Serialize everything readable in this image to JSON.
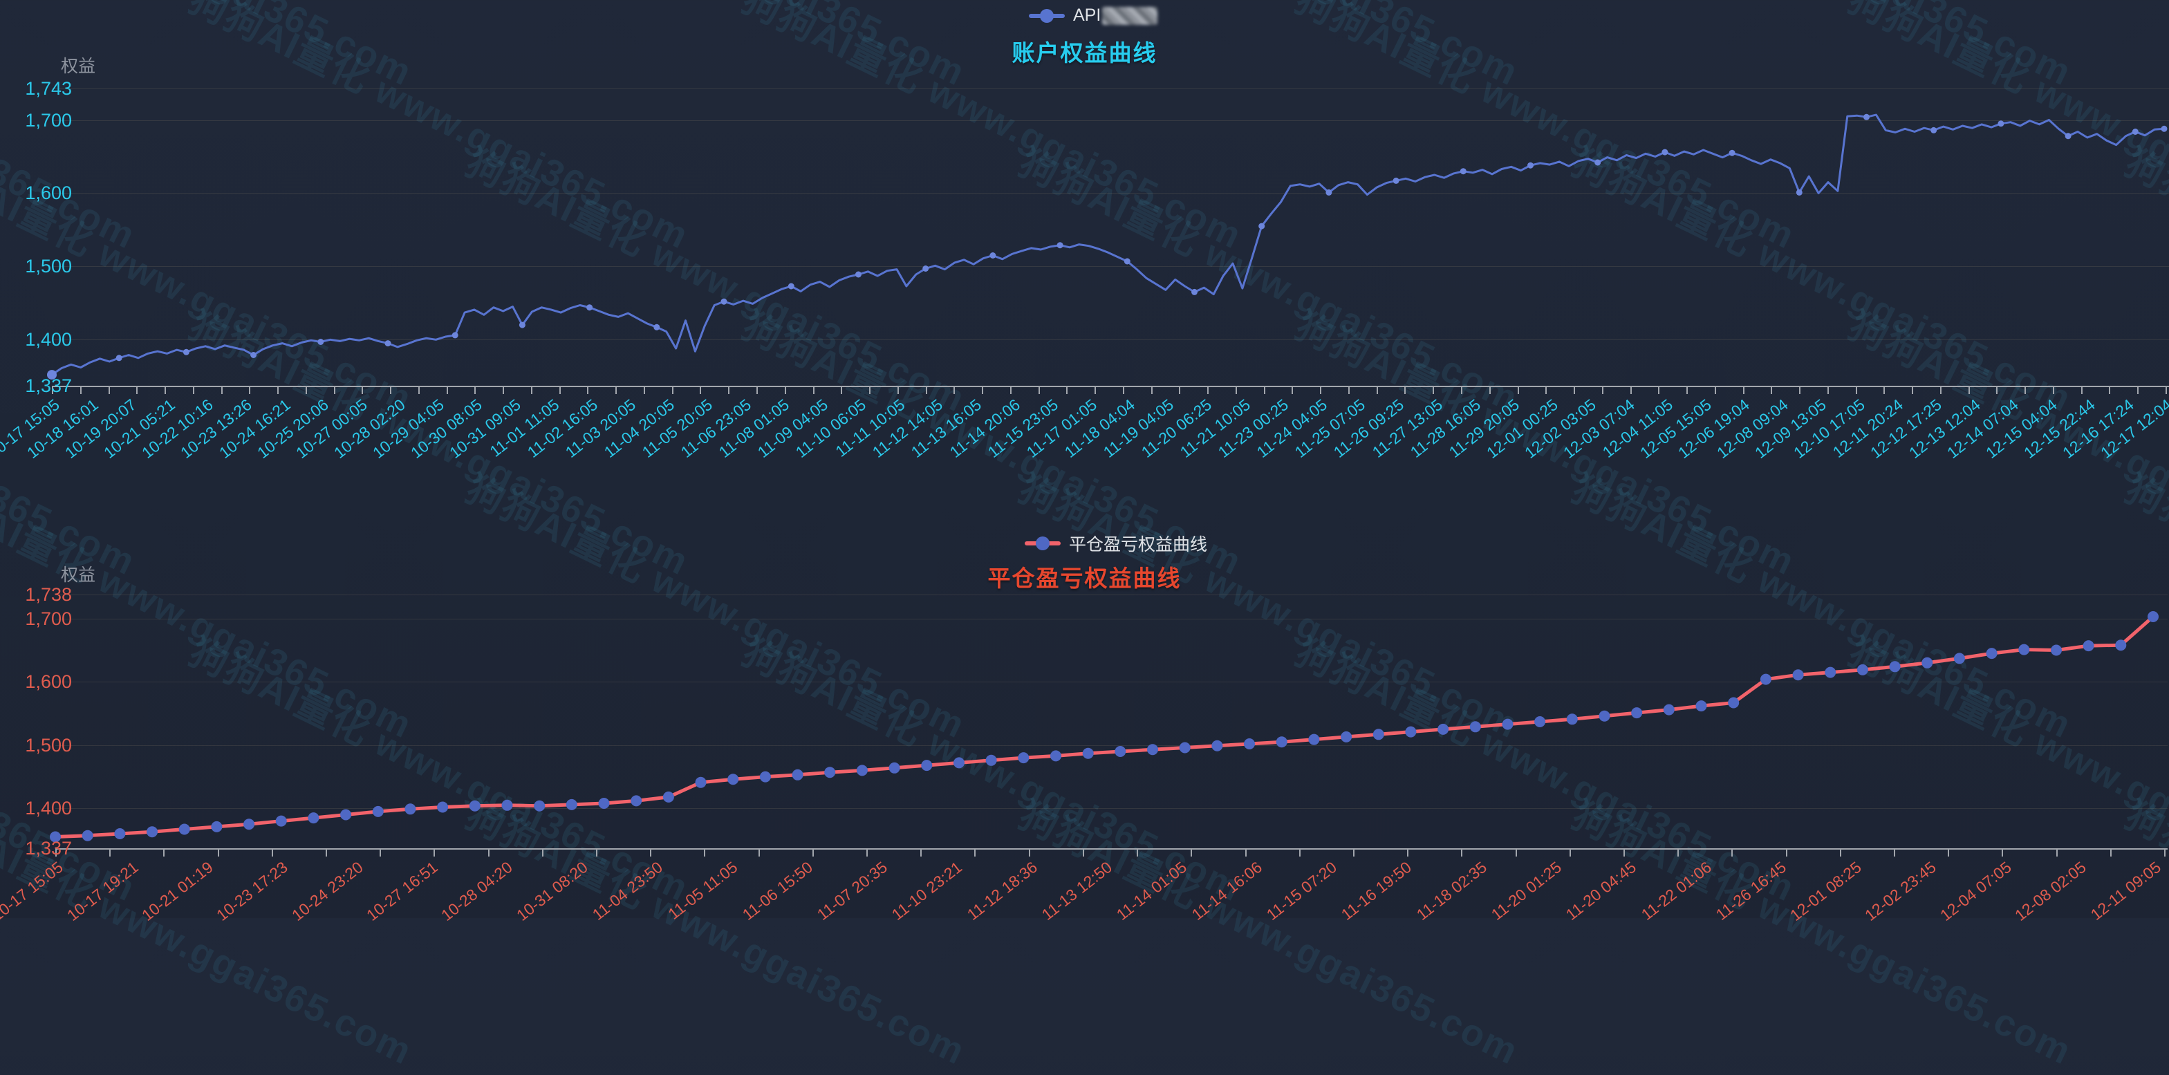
{
  "watermark": {
    "text": "狗狗AI量化 www.ggai365.com"
  },
  "chart_data": [
    {
      "type": "line",
      "title": "账户权益曲线",
      "title_color": "#27cdef",
      "legend": {
        "label": "API",
        "label_masked_suffix": true,
        "line_color": "#5874d0",
        "dot_color": "#5874d0"
      },
      "y_axis": {
        "name": "权益",
        "tick_labels": [
          "1,743",
          "1,700",
          "1,600",
          "1,500",
          "1,400",
          "1,337"
        ],
        "tick_values": [
          1743,
          1700,
          1600,
          1500,
          1400,
          1337
        ],
        "min": 1337,
        "max": 1743,
        "label_color": "#2bc9ea"
      },
      "x_axis": {
        "label_color": "#2bc9ea",
        "labels": [
          "10-17 15:05",
          "10-18 16:01",
          "10-19 20:07",
          "10-21 05:21",
          "10-22 10:16",
          "10-23 13:26",
          "10-24 16:21",
          "10-25 20:06",
          "10-27 00:05",
          "10-28 02:20",
          "10-29 04:05",
          "10-30 08:05",
          "10-31 09:05",
          "11-01 11:05",
          "11-02 16:05",
          "11-03 20:05",
          "11-04 20:05",
          "11-05 20:05",
          "11-06 23:05",
          "11-08 01:05",
          "11-09 04:05",
          "11-10 06:05",
          "11-11 10:05",
          "11-12 14:05",
          "11-13 16:05",
          "11-14 20:06",
          "11-15 23:05",
          "11-17 01:05",
          "11-18 04:04",
          "11-19 04:05",
          "11-20 06:25",
          "11-21 10:05",
          "11-23 00:25",
          "11-24 04:05",
          "11-25 07:05",
          "11-26 09:25",
          "11-27 13:05",
          "11-28 16:05",
          "11-29 20:05",
          "12-01 00:25",
          "12-02 03:05",
          "12-03 07:04",
          "12-04 11:05",
          "12-05 15:05",
          "12-06 19:04",
          "12-08 09:04",
          "12-09 13:05",
          "12-10 17:05",
          "12-11 20:24",
          "12-12 17:25",
          "12-13 12:04",
          "12-14 07:04",
          "12-15 04:04",
          "12-15 22:44",
          "12-16 17:24",
          "12-17 12:04"
        ]
      },
      "series": {
        "name": "API",
        "color": "#5874d0",
        "marker_color": "#6d86dc",
        "values": [
          1352,
          1361,
          1366,
          1362,
          1369,
          1374,
          1370,
          1375,
          1379,
          1375,
          1381,
          1384,
          1381,
          1386,
          1383,
          1388,
          1391,
          1387,
          1392,
          1389,
          1386,
          1379,
          1387,
          1392,
          1395,
          1391,
          1396,
          1399,
          1397,
          1400,
          1398,
          1401,
          1399,
          1402,
          1398,
          1395,
          1390,
          1394,
          1399,
          1402,
          1400,
          1404,
          1406,
          1437,
          1441,
          1434,
          1444,
          1439,
          1445,
          1420,
          1438,
          1444,
          1441,
          1437,
          1443,
          1447,
          1444,
          1439,
          1434,
          1431,
          1436,
          1429,
          1422,
          1417,
          1411,
          1388,
          1426,
          1384,
          1419,
          1447,
          1452,
          1448,
          1453,
          1449,
          1457,
          1463,
          1469,
          1473,
          1466,
          1475,
          1479,
          1472,
          1481,
          1486,
          1489,
          1493,
          1487,
          1494,
          1496,
          1473,
          1489,
          1497,
          1501,
          1496,
          1505,
          1509,
          1503,
          1511,
          1515,
          1510,
          1517,
          1521,
          1525,
          1523,
          1527,
          1529,
          1526,
          1530,
          1528,
          1524,
          1519,
          1513,
          1507,
          1496,
          1484,
          1476,
          1468,
          1482,
          1473,
          1465,
          1471,
          1462,
          1487,
          1504,
          1470,
          1512,
          1555,
          1572,
          1588,
          1610,
          1612,
          1609,
          1613,
          1601,
          1611,
          1615,
          1612,
          1598,
          1608,
          1614,
          1617,
          1620,
          1616,
          1622,
          1625,
          1621,
          1627,
          1630,
          1628,
          1632,
          1626,
          1633,
          1636,
          1631,
          1638,
          1641,
          1639,
          1643,
          1637,
          1644,
          1647,
          1642,
          1649,
          1645,
          1652,
          1648,
          1654,
          1650,
          1656,
          1651,
          1657,
          1653,
          1659,
          1654,
          1649,
          1655,
          1651,
          1645,
          1640,
          1646,
          1641,
          1634,
          1601,
          1623,
          1600,
          1615,
          1603,
          1705,
          1706,
          1704,
          1707,
          1686,
          1683,
          1688,
          1684,
          1689,
          1686,
          1691,
          1687,
          1692,
          1689,
          1694,
          1690,
          1695,
          1697,
          1692,
          1699,
          1694,
          1700,
          1688,
          1678,
          1684,
          1676,
          1681,
          1672,
          1666,
          1678,
          1684,
          1679,
          1687,
          1688
        ]
      }
    },
    {
      "type": "line",
      "title": "平仓盈亏权益曲线",
      "title_color": "#e7472e",
      "legend": {
        "label": "平仓盈亏权益曲线",
        "line_color": "#f2636b",
        "dot_color": "#4f68c4"
      },
      "y_axis": {
        "name": "权益",
        "tick_labels": [
          "1,738",
          "1,700",
          "1,600",
          "1,500",
          "1,400",
          "1,337"
        ],
        "tick_values": [
          1738,
          1700,
          1600,
          1500,
          1400,
          1337
        ],
        "min": 1337,
        "max": 1738,
        "label_color": "#e05c4e"
      },
      "x_axis": {
        "label_color": "#e05c4e",
        "labels": [
          "10-17 15:05",
          "10-17 19:21",
          "10-21 01:19",
          "10-23 17:23",
          "10-24 23:20",
          "10-27 16:51",
          "10-28 04:20",
          "10-31 08:20",
          "11-04 23:50",
          "11-05 11:05",
          "11-06 15:50",
          "11-07 20:35",
          "11-10 23:21",
          "11-12 18:36",
          "11-13 12:50",
          "11-14 01:05",
          "11-14 16:06",
          "11-15 07:20",
          "11-16 19:50",
          "11-18 02:35",
          "11-20 01:25",
          "11-20 04:45",
          "11-22 01:06",
          "11-26 16:45",
          "12-01 08:25",
          "12-02 23:45",
          "12-04 07:05",
          "12-08 02:05",
          "12-11 09:05"
        ]
      },
      "series": {
        "name": "平仓盈亏权益曲线",
        "color": "#f2636b",
        "marker_color": "#4f68c4",
        "values": [
          1355,
          1357,
          1360,
          1363,
          1367,
          1371,
          1375,
          1380,
          1385,
          1390,
          1395,
          1399,
          1402,
          1404,
          1405,
          1404,
          1406,
          1408,
          1412,
          1418,
          1441,
          1446,
          1450,
          1453,
          1457,
          1460,
          1464,
          1468,
          1472,
          1476,
          1480,
          1483,
          1487,
          1490,
          1493,
          1496,
          1499,
          1502,
          1505,
          1509,
          1513,
          1517,
          1521,
          1525,
          1529,
          1533,
          1537,
          1541,
          1546,
          1551,
          1556,
          1562,
          1567,
          1604,
          1611,
          1615,
          1619,
          1624,
          1630,
          1637,
          1645,
          1651,
          1650,
          1657,
          1658,
          1703
        ]
      }
    }
  ]
}
